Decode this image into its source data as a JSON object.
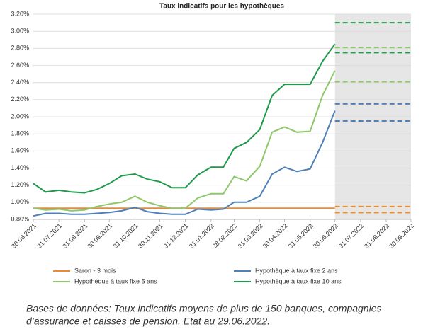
{
  "chart_data": {
    "type": "line",
    "title": "Taux indicatifs pour les hypothèques",
    "x": [
      "30.06.2021",
      "15.07.2021",
      "31.07.2021",
      "15.08.2021",
      "31.08.2021",
      "15.09.2021",
      "30.09.2021",
      "15.10.2021",
      "31.10.2021",
      "15.11.2021",
      "30.11.2021",
      "15.12.2021",
      "31.12.2021",
      "15.01.2022",
      "31.01.2022",
      "15.02.2022",
      "28.02.2022",
      "15.03.2022",
      "31.03.2022",
      "15.04.2022",
      "30.04.2022",
      "15.05.2022",
      "31.05.2022",
      "15.06.2022",
      "30.06.2022"
    ],
    "series": [
      {
        "name": "Saron - 3 mois",
        "color": "#ed8a2e",
        "values": [
          0.93,
          0.93,
          0.93,
          0.93,
          0.93,
          0.93,
          0.93,
          0.93,
          0.93,
          0.93,
          0.93,
          0.93,
          0.93,
          0.93,
          0.93,
          0.93,
          0.93,
          0.93,
          0.93,
          0.93,
          0.93,
          0.93,
          0.93,
          0.93,
          0.93
        ],
        "forecast": [
          0.88,
          0.95
        ]
      },
      {
        "name": "Hypothèque à taux fixe 2 ans",
        "color": "#4f80b8",
        "values": [
          0.84,
          0.87,
          0.87,
          0.86,
          0.86,
          0.87,
          0.88,
          0.9,
          0.94,
          0.89,
          0.87,
          0.86,
          0.86,
          0.92,
          0.91,
          0.92,
          1.0,
          1.0,
          1.07,
          1.33,
          1.41,
          1.36,
          1.39,
          1.7,
          2.07
        ],
        "forecast": [
          1.95,
          2.15
        ]
      },
      {
        "name": "Hypothèque à taux fixe 5 ans",
        "color": "#8ec86a",
        "values": [
          0.93,
          0.91,
          0.92,
          0.9,
          0.91,
          0.95,
          0.98,
          1.0,
          1.07,
          1.0,
          0.96,
          0.93,
          0.93,
          1.05,
          1.1,
          1.1,
          1.3,
          1.25,
          1.42,
          1.82,
          1.88,
          1.82,
          1.83,
          2.25,
          2.54
        ],
        "forecast": [
          2.41,
          2.81
        ]
      },
      {
        "name": "Hypothèque à taux fixe 10 ans",
        "color": "#1e9a4b",
        "values": [
          1.22,
          1.12,
          1.14,
          1.12,
          1.11,
          1.15,
          1.22,
          1.31,
          1.33,
          1.27,
          1.24,
          1.17,
          1.17,
          1.32,
          1.41,
          1.41,
          1.63,
          1.7,
          1.85,
          2.25,
          2.38,
          2.38,
          2.38,
          2.65,
          2.85
        ],
        "forecast": [
          2.75,
          3.1
        ]
      }
    ],
    "forecast_start": "30.06.2022",
    "xlim": [
      "30.06.2021",
      "30.09.2022"
    ],
    "xticks": [
      "30.06.2021",
      "31.07.2021",
      "31.08.2021",
      "30.09.2021",
      "31.10.2021",
      "30.11.2021",
      "31.12.2021",
      "31.01.2022",
      "28.02.2022",
      "31.03.2022",
      "30.04.2022",
      "31.05.2022",
      "30.06.2022",
      "31.07.2022",
      "31.08.2022",
      "30.09.2022"
    ],
    "ylim": [
      0.8,
      3.2
    ],
    "yticks": [
      {
        "value": 0.8,
        "label": "0.80%"
      },
      {
        "value": 1.0,
        "label": "1.00%"
      },
      {
        "value": 1.2,
        "label": "1.20%"
      },
      {
        "value": 1.4,
        "label": "1.40%"
      },
      {
        "value": 1.6,
        "label": "1.60%"
      },
      {
        "value": 1.8,
        "label": "1.80%"
      },
      {
        "value": 2.0,
        "label": "2.00%"
      },
      {
        "value": 2.2,
        "label": "2.20%"
      },
      {
        "value": 2.4,
        "label": "2.40%"
      },
      {
        "value": 2.6,
        "label": "2.60%"
      },
      {
        "value": 2.8,
        "label": "2.80%"
      },
      {
        "value": 3.0,
        "label": "3.00%"
      },
      {
        "value": 3.2,
        "label": "3.20%"
      }
    ],
    "grid": true,
    "caption": [
      "Bases de données: Taux indicatifs moyens de plus de 150 banques, compagnies",
      "d’assurance et caisses de pension. Etat au 29.06.2022."
    ]
  }
}
